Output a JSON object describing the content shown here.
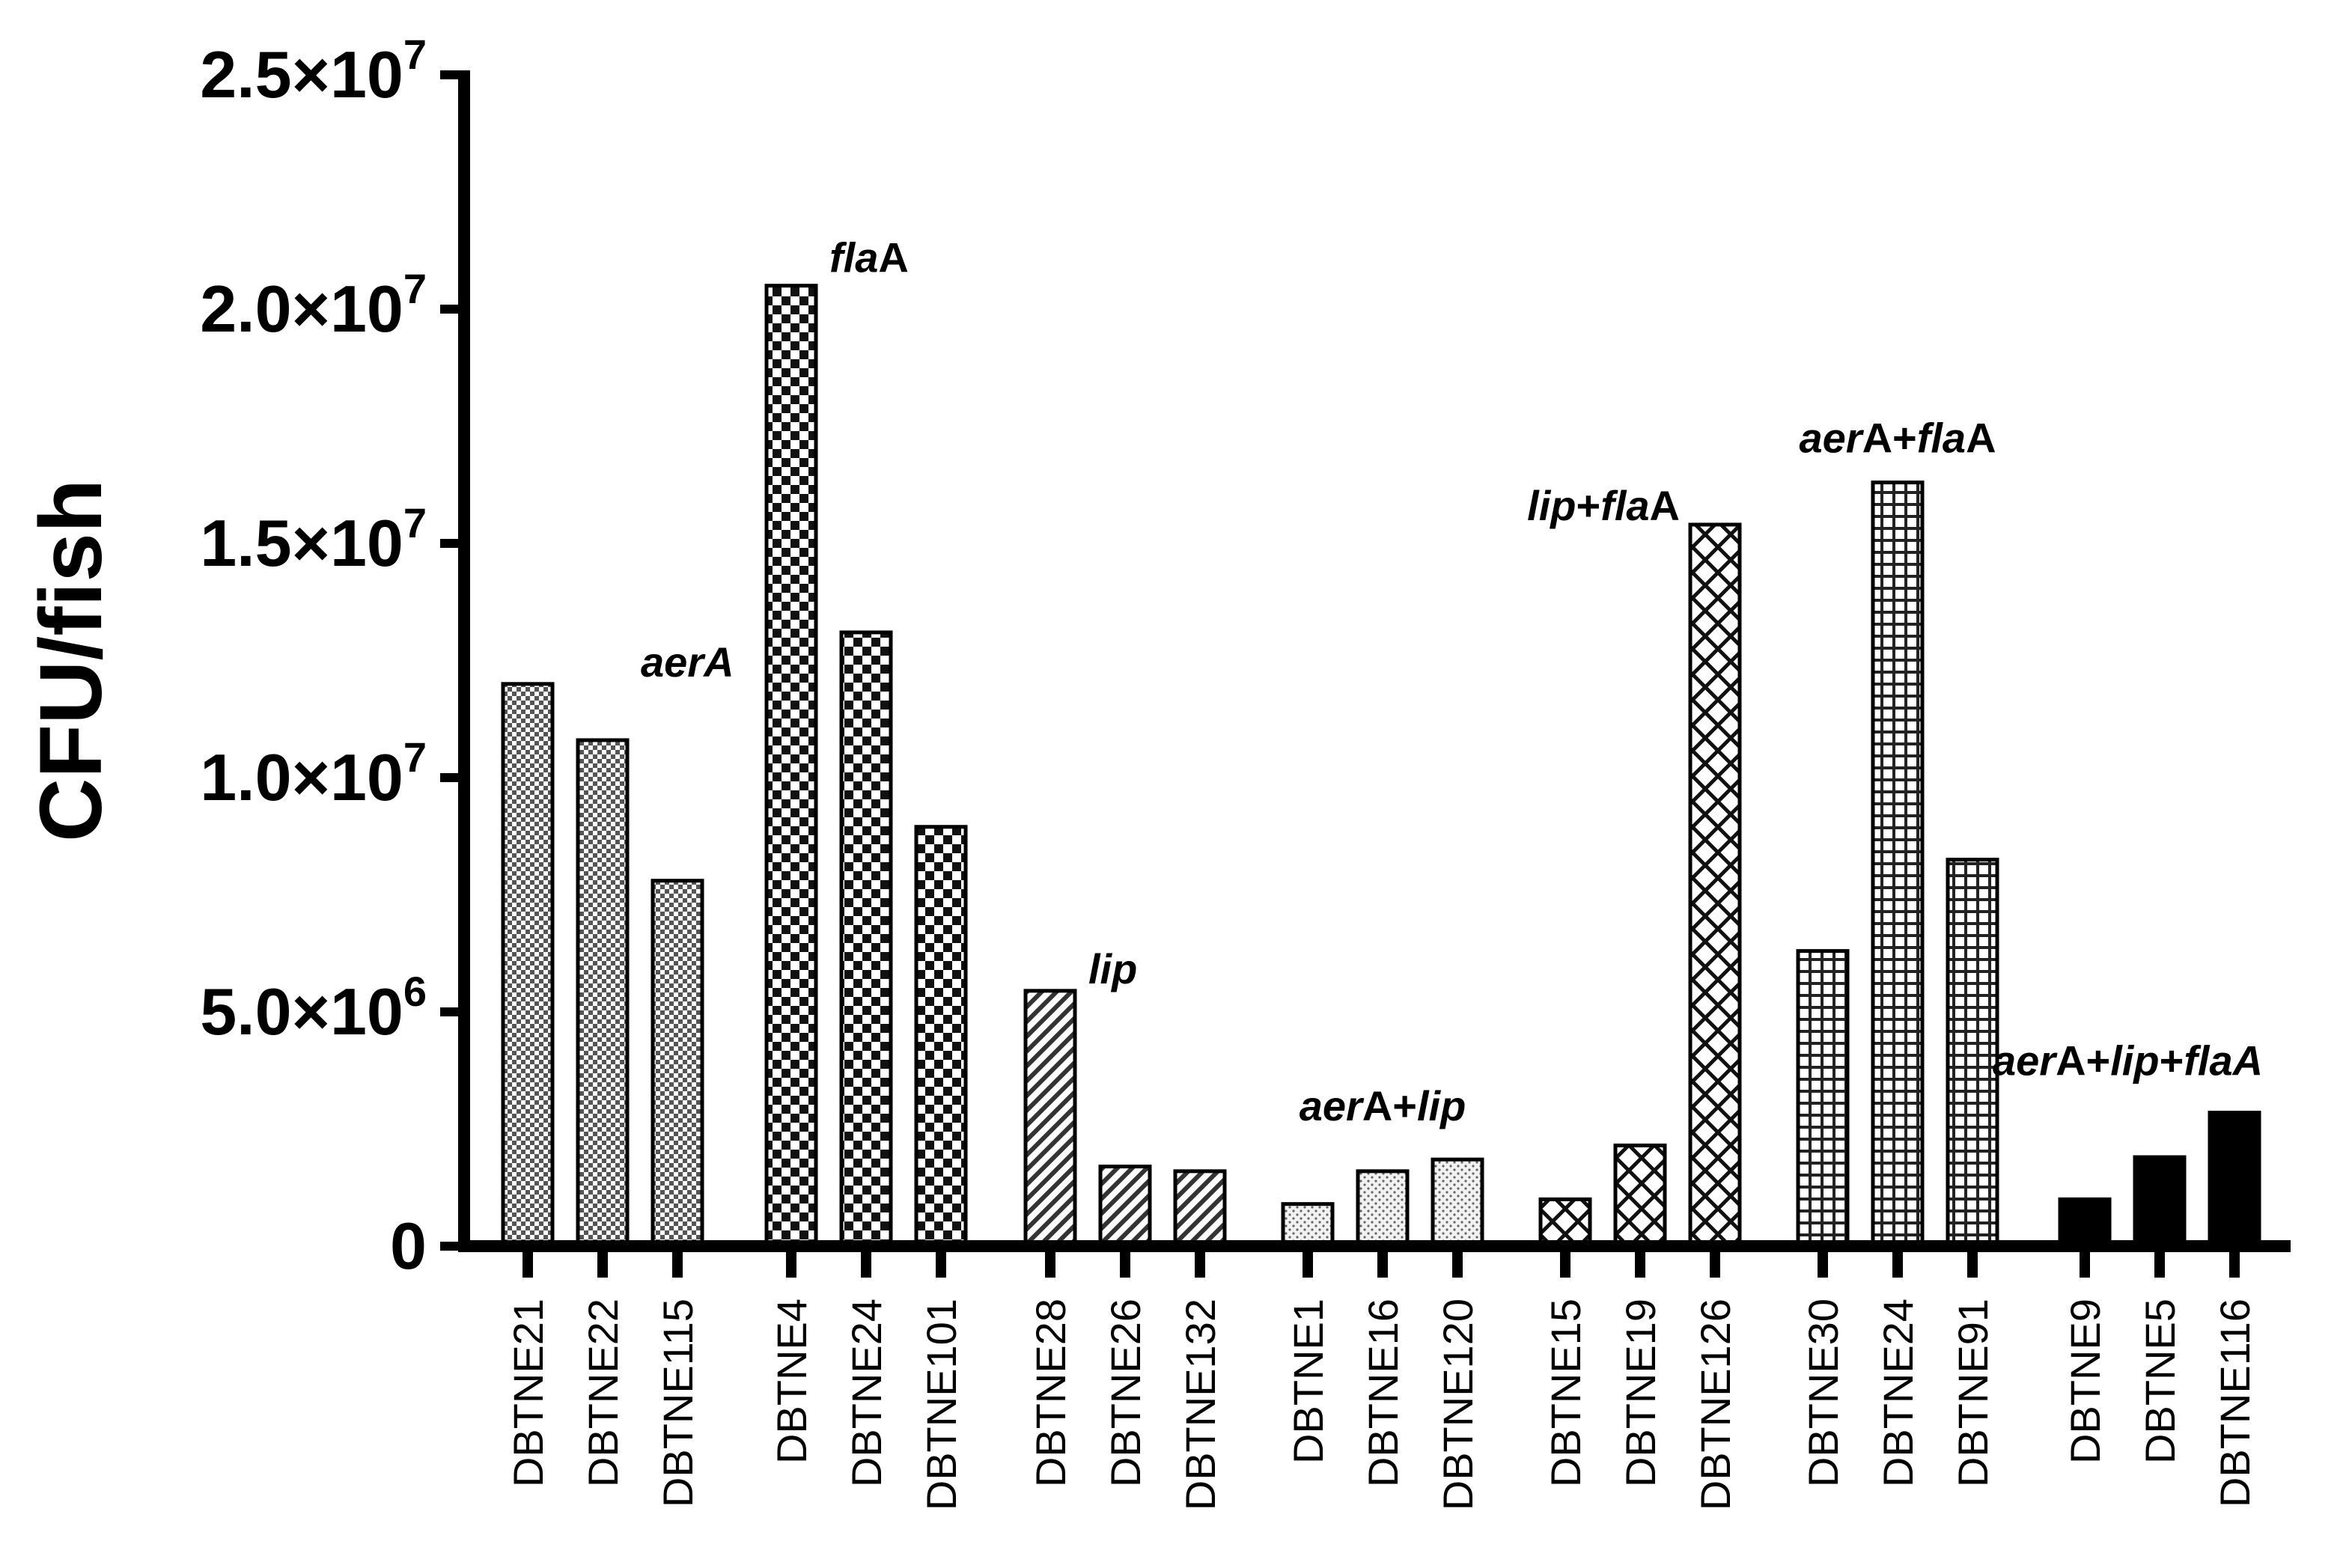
{
  "chart_data": {
    "type": "bar",
    "title": "",
    "ylabel": "CFU/fish",
    "xlabel": "",
    "ylim": [
      0,
      25000000
    ],
    "grid": false,
    "y_ticks": [
      {
        "value": 0,
        "base": "0",
        "exp": ""
      },
      {
        "value": 5000000,
        "base": "5.0×10",
        "exp": "6"
      },
      {
        "value": 10000000,
        "base": "1.0×10",
        "exp": "7"
      },
      {
        "value": 15000000,
        "base": "1.5×10",
        "exp": "7"
      },
      {
        "value": 20000000,
        "base": "2.0×10",
        "exp": "7"
      },
      {
        "value": 25000000,
        "base": "2.5×10",
        "exp": "7"
      }
    ],
    "groups": [
      {
        "label_parts": [
          {
            "text": "aer",
            "italic": true
          },
          {
            "text": "A",
            "italic": true
          }
        ],
        "pattern": "fine-check",
        "bars": [
          {
            "category": "DBTNE21",
            "value": 12000000
          },
          {
            "category": "DBTNE22",
            "value": 10800000
          },
          {
            "category": "DBTNE115",
            "value": 7800000
          }
        ]
      },
      {
        "label_parts": [
          {
            "text": "fla",
            "italic": true
          },
          {
            "text": "A",
            "italic": false
          }
        ],
        "pattern": "checker",
        "bars": [
          {
            "category": "DBTNE4",
            "value": 20500000
          },
          {
            "category": "DBTNE24",
            "value": 13100000
          },
          {
            "category": "DBTNE101",
            "value": 8950000
          }
        ]
      },
      {
        "label_parts": [
          {
            "text": "lip",
            "italic": true
          }
        ],
        "pattern": "diagonal",
        "bars": [
          {
            "category": "DBTNE28",
            "value": 5450000
          },
          {
            "category": "DBTNE26",
            "value": 1700000
          },
          {
            "category": "DBTNE132",
            "value": 1600000
          }
        ]
      },
      {
        "label_parts": [
          {
            "text": "aer",
            "italic": true
          },
          {
            "text": "A+",
            "italic": false
          },
          {
            "text": "lip",
            "italic": true
          }
        ],
        "pattern": "dots",
        "bars": [
          {
            "category": "DBTNE1",
            "value": 900000
          },
          {
            "category": "DBTNE16",
            "value": 1600000
          },
          {
            "category": "DBTNE120",
            "value": 1850000
          }
        ]
      },
      {
        "label_parts": [
          {
            "text": "lip",
            "italic": true
          },
          {
            "text": "+",
            "italic": false
          },
          {
            "text": "fla",
            "italic": true
          },
          {
            "text": "A",
            "italic": false
          }
        ],
        "pattern": "diamond",
        "bars": [
          {
            "category": "DBTNE15",
            "value": 1000000
          },
          {
            "category": "DBTNE19",
            "value": 2150000
          },
          {
            "category": "DBTNE126",
            "value": 15400000
          }
        ]
      },
      {
        "label_parts": [
          {
            "text": "aer",
            "italic": true
          },
          {
            "text": "A+",
            "italic": false
          },
          {
            "text": "fla",
            "italic": true
          },
          {
            "text": "A",
            "italic": false
          }
        ],
        "pattern": "grid",
        "bars": [
          {
            "category": "DBTNE30",
            "value": 6300000
          },
          {
            "category": "DBTNE24",
            "value": 16300000
          },
          {
            "category": "DBTNE91",
            "value": 8250000
          }
        ]
      },
      {
        "label_parts": [
          {
            "text": "aer",
            "italic": true
          },
          {
            "text": "A+",
            "italic": false
          },
          {
            "text": "lip",
            "italic": true
          },
          {
            "text": "+",
            "italic": false
          },
          {
            "text": "flaA",
            "italic": true
          }
        ],
        "pattern": "solid",
        "bars": [
          {
            "category": "DBTNE9",
            "value": 1000000
          },
          {
            "category": "DBTNE5",
            "value": 1900000
          },
          {
            "category": "DBTNE116",
            "value": 2850000
          }
        ]
      }
    ]
  }
}
